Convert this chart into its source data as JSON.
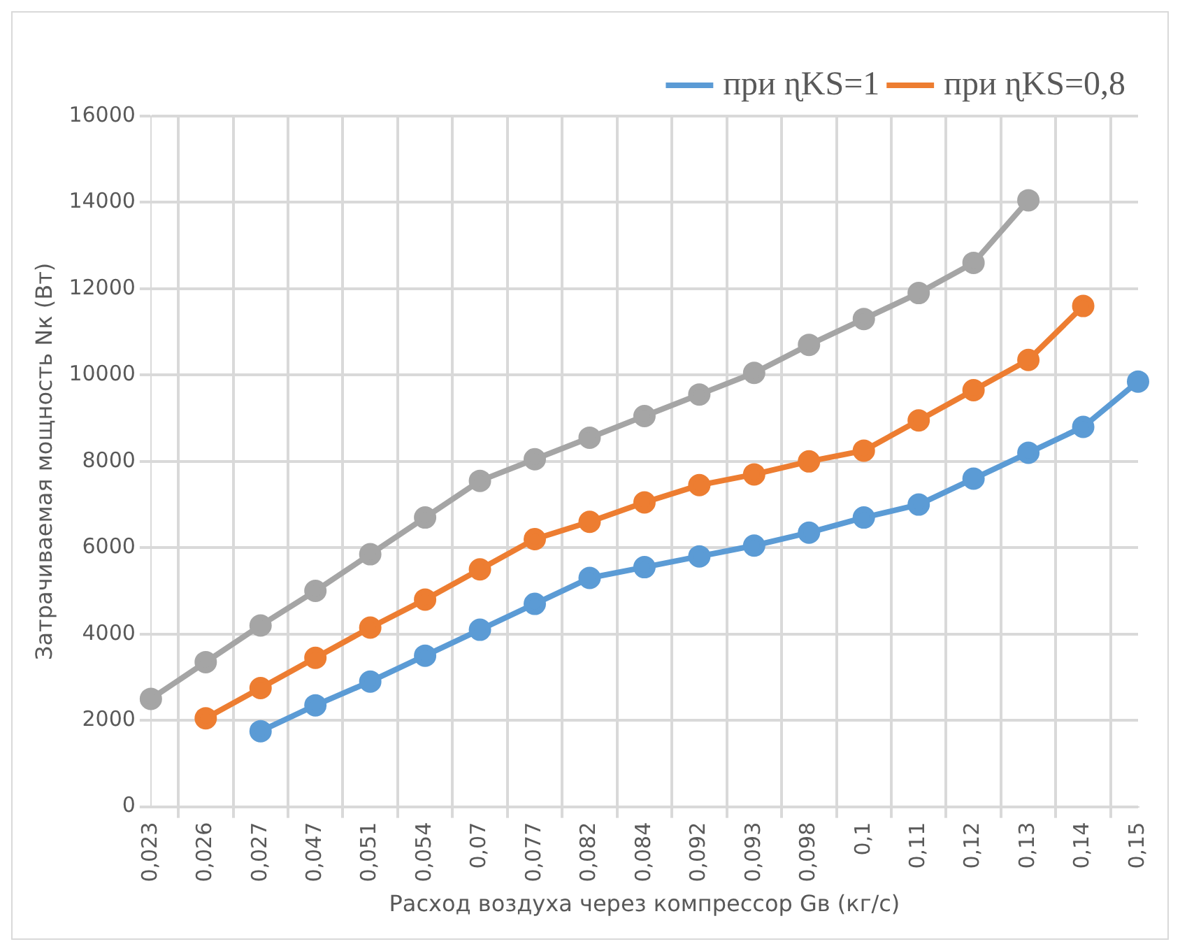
{
  "chart_data": {
    "type": "line",
    "xlabel": "Расход воздуха через компрессор Gв (кг/с)",
    "ylabel": "Затрачиваемая мощность Nк (Вт)",
    "categories": [
      "0,023",
      "0,026",
      "0,027",
      "0,047",
      "0,051",
      "0,054",
      "0,07",
      "0,077",
      "0,082",
      "0,084",
      "0,092",
      "0,093",
      "0,098",
      "0,1",
      "0,11",
      "0,12",
      "0,13",
      "0,14",
      "0,15"
    ],
    "series": [
      {
        "name": "при ɳKS=1",
        "color": "#5b9bd5",
        "values": [
          null,
          null,
          1750,
          2350,
          2900,
          3500,
          4100,
          4700,
          5300,
          5550,
          5800,
          6050,
          6350,
          6700,
          7000,
          7600,
          8200,
          8800,
          9850
        ]
      },
      {
        "name": "при ɳKS=0,8",
        "color": "#ed7d31",
        "values": [
          null,
          2050,
          2750,
          3450,
          4150,
          4800,
          5500,
          6200,
          6600,
          7050,
          7450,
          7700,
          8000,
          8250,
          8950,
          9650,
          10350,
          11600,
          null
        ]
      },
      {
        "color": "#a5a5a5",
        "values": [
          2500,
          3350,
          4200,
          5000,
          5850,
          6700,
          7550,
          8050,
          8550,
          9050,
          9550,
          10050,
          10700,
          11300,
          11900,
          12600,
          14050,
          null,
          null
        ]
      }
    ],
    "ylim": [
      0,
      16000
    ],
    "yticks": [
      0,
      2000,
      4000,
      6000,
      8000,
      10000,
      12000,
      14000,
      16000
    ],
    "grid": true,
    "legend": "top right",
    "marker": "circle",
    "line_style": "solid"
  }
}
